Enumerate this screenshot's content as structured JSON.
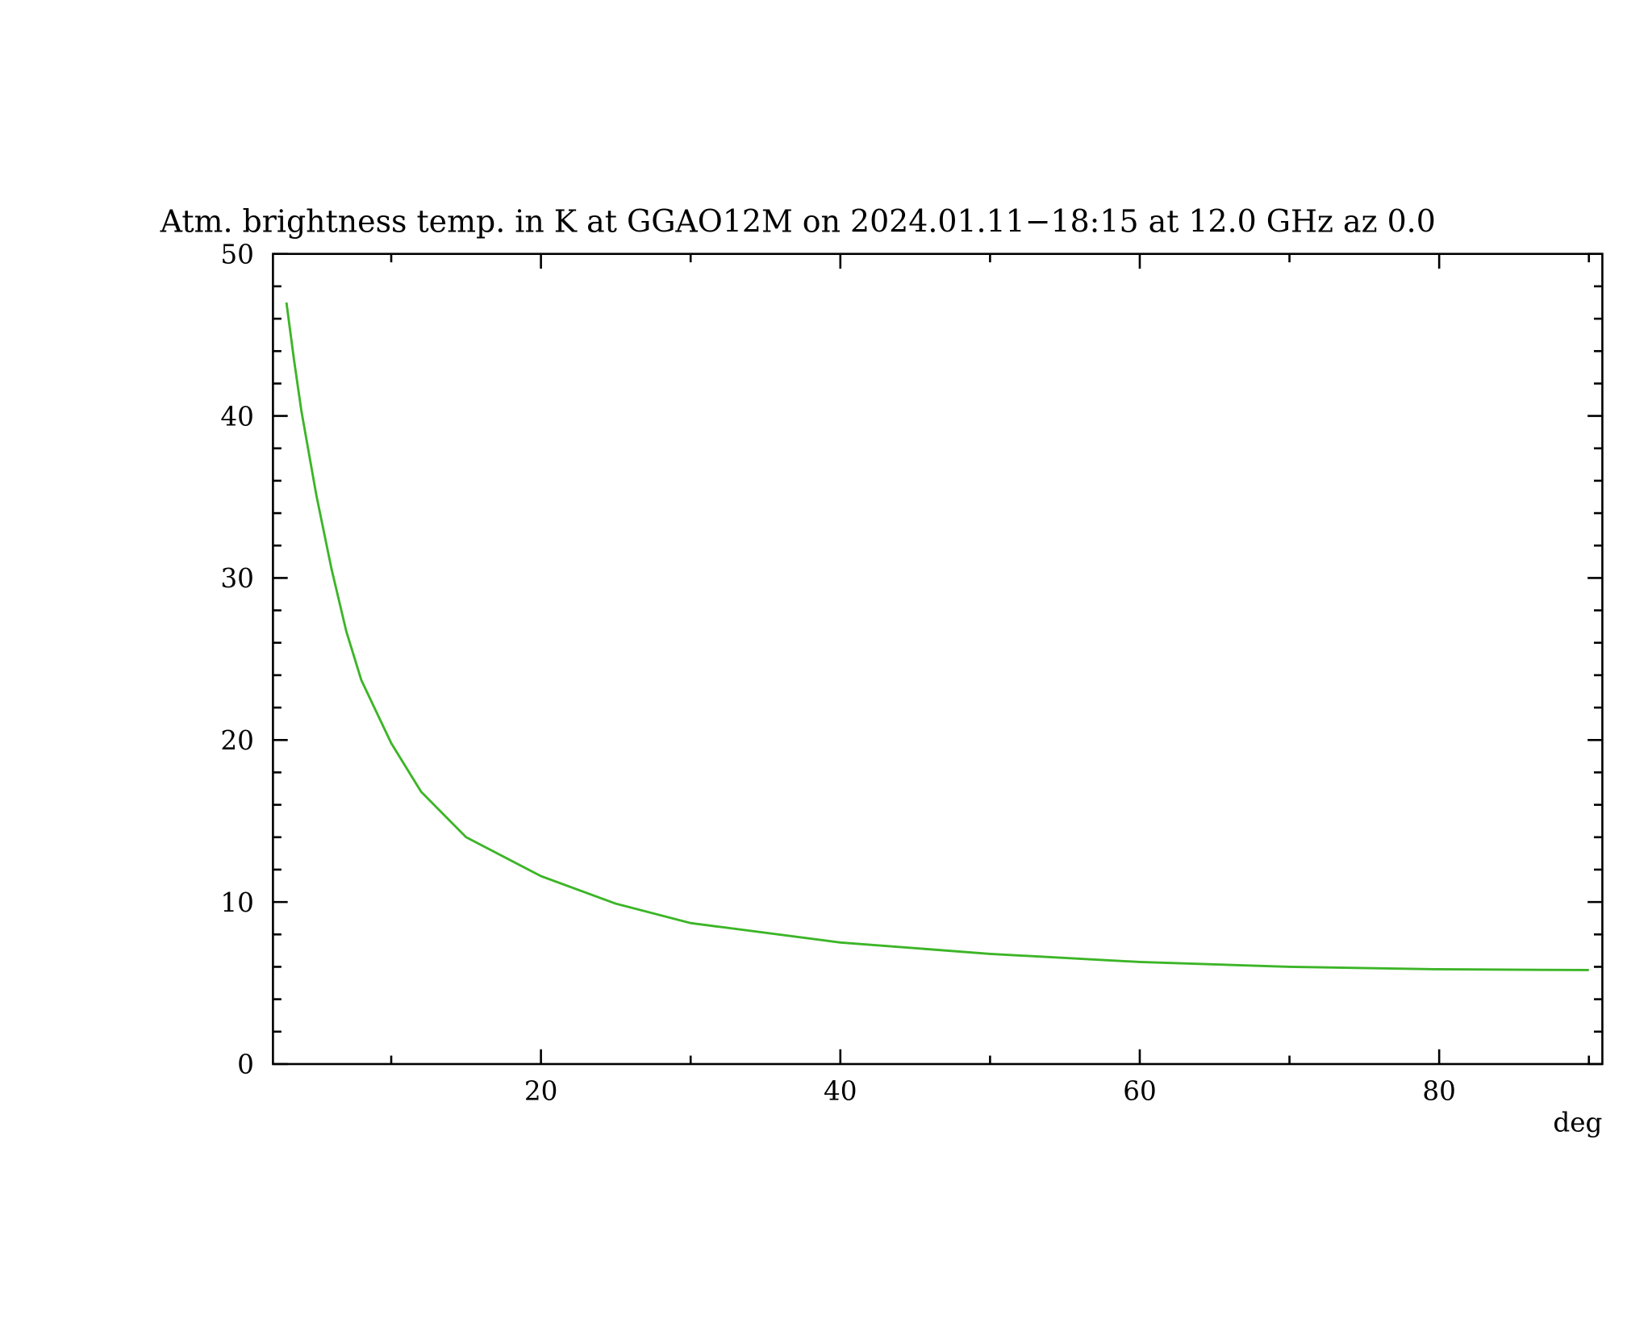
{
  "chart_data": {
    "type": "line",
    "title": "Atm. brightness temp. in K at GGAO12M  on 2024.01.11−18:15 at  12.0 GHz az    0.0",
    "x_label": "deg",
    "x": [
      3,
      3.5,
      4,
      5,
      6,
      7,
      8,
      10,
      12,
      15,
      20,
      25,
      30,
      40,
      50,
      60,
      70,
      80,
      90
    ],
    "series": [
      {
        "color": "#3cb527",
        "values": [
          47,
          43.5,
          40.3,
          35.1,
          30.6,
          26.7,
          23.7,
          19.8,
          16.8,
          14.0,
          11.6,
          9.9,
          8.7,
          7.5,
          6.8,
          6.3,
          6.0,
          5.85,
          5.8
        ]
      }
    ],
    "xlim": [
      2.1,
      90.9
    ],
    "xticks": [
      20,
      40,
      60,
      80
    ],
    "xminorticks": [
      10,
      30,
      50,
      70,
      90
    ],
    "ylim": [
      0,
      50
    ],
    "yticks": [
      0,
      10,
      20,
      30,
      40,
      50
    ],
    "yminorticks": [
      2,
      4,
      6,
      8,
      12,
      14,
      16,
      18,
      22,
      24,
      26,
      28,
      32,
      34,
      36,
      38,
      42,
      44,
      46,
      48
    ]
  }
}
